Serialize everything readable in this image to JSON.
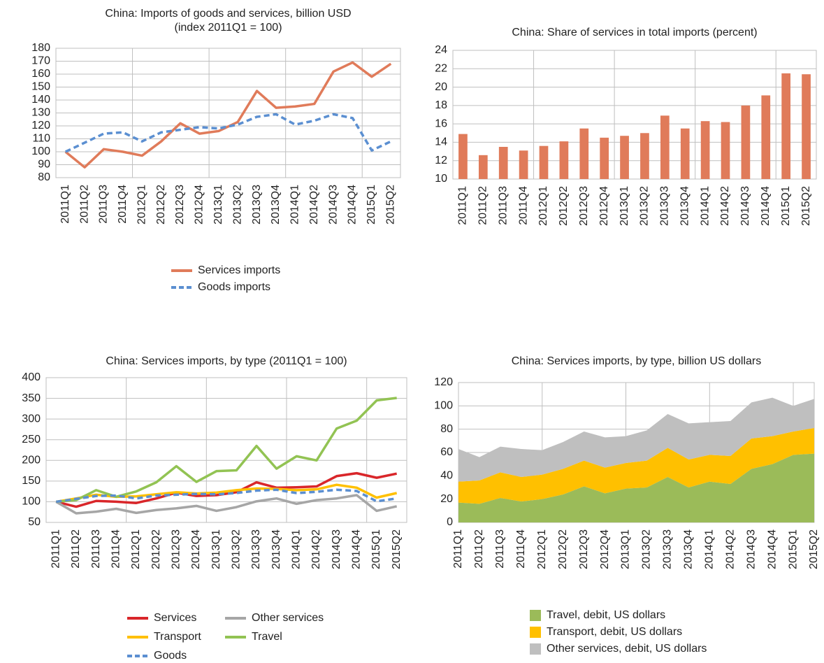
{
  "chart_data": [
    {
      "type": "line",
      "title": "China: Imports of goods and services, billion USD",
      "subtitle": "(index 2011Q1 = 100)",
      "categories": [
        "2011Q1",
        "2011Q2",
        "2011Q3",
        "2011Q4",
        "2012Q1",
        "2012Q2",
        "2012Q3",
        "2012Q4",
        "2013Q1",
        "2013Q2",
        "2013Q3",
        "2013Q4",
        "2014Q1",
        "2014Q2",
        "2014Q3",
        "2014Q4",
        "2015Q1",
        "2015Q2"
      ],
      "series": [
        {
          "name": "Services imports",
          "color": "#e07b5a",
          "dash": false,
          "values": [
            100,
            88,
            102,
            100,
            97,
            108,
            122,
            114,
            116,
            123,
            147,
            134,
            135,
            137,
            162,
            169,
            158,
            168
          ]
        },
        {
          "name": "Goods imports",
          "color": "#5b8fd1",
          "dash": true,
          "values": [
            100,
            107,
            114,
            115,
            108,
            115,
            117,
            119,
            118,
            121,
            127,
            129,
            121,
            124,
            129,
            126,
            101,
            108
          ]
        }
      ],
      "ylim": [
        80,
        180
      ],
      "yticks": [
        80,
        90,
        100,
        110,
        120,
        130,
        140,
        150,
        160,
        170,
        180
      ],
      "grid": true,
      "legend_columns": 1
    },
    {
      "type": "bar",
      "title": "China: Share of services in total imports (percent)",
      "categories": [
        "2011Q1",
        "2011Q2",
        "2011Q3",
        "2011Q4",
        "2012Q1",
        "2012Q2",
        "2012Q3",
        "2012Q4",
        "2013Q1",
        "2013Q2",
        "2013Q3",
        "2013Q4",
        "2014Q1",
        "2014Q2",
        "2014Q3",
        "2014Q4",
        "2015Q1",
        "2015Q2"
      ],
      "values": [
        14.9,
        12.6,
        13.5,
        13.1,
        13.6,
        14.1,
        15.5,
        14.5,
        14.7,
        15.0,
        16.9,
        15.5,
        16.3,
        16.2,
        18.0,
        19.1,
        21.5,
        21.4
      ],
      "color": "#e07b5a",
      "ylim": [
        10,
        24
      ],
      "yticks": [
        10,
        12,
        14,
        16,
        18,
        20,
        22,
        24
      ],
      "grid": true
    },
    {
      "type": "line",
      "title": "China: Services imports, by type (2011Q1 = 100)",
      "categories": [
        "2011Q1",
        "2011Q2",
        "2011Q3",
        "2011Q4",
        "2012Q1",
        "2012Q2",
        "2012Q3",
        "2012Q4",
        "2013Q1",
        "2013Q2",
        "2013Q3",
        "2013Q4",
        "2014Q1",
        "2014Q2",
        "2014Q3",
        "2014Q4",
        "2015Q1",
        "2015Q2"
      ],
      "series": [
        {
          "name": "Services",
          "color": "#d9262a",
          "dash": false,
          "values": [
            100,
            88,
            102,
            100,
            97,
            108,
            122,
            114,
            116,
            123,
            147,
            134,
            135,
            137,
            162,
            169,
            158,
            168
          ]
        },
        {
          "name": "Other services",
          "color": "#a6a6a6",
          "dash": false,
          "values": [
            100,
            72,
            76,
            83,
            73,
            80,
            84,
            90,
            78,
            87,
            101,
            108,
            95,
            104,
            108,
            116,
            78,
            89
          ]
        },
        {
          "name": "Transport",
          "color": "#ffc000",
          "dash": false,
          "values": [
            100,
            108,
            117,
            112,
            113,
            118,
            123,
            120,
            122,
            128,
            132,
            131,
            128,
            130,
            141,
            134,
            110,
            121
          ]
        },
        {
          "name": "Travel",
          "color": "#92c353",
          "dash": false,
          "values": [
            100,
            104,
            128,
            112,
            125,
            147,
            186,
            148,
            174,
            176,
            235,
            180,
            210,
            200,
            277,
            296,
            345,
            351
          ]
        },
        {
          "name": "Goods",
          "color": "#5b8fd1",
          "dash": true,
          "values": [
            100,
            107,
            114,
            115,
            108,
            115,
            117,
            119,
            118,
            121,
            127,
            129,
            121,
            124,
            129,
            126,
            101,
            108
          ]
        }
      ],
      "ylim": [
        50,
        400
      ],
      "yticks": [
        50,
        100,
        150,
        200,
        250,
        300,
        350,
        400
      ],
      "grid": true,
      "legend_columns": 2
    },
    {
      "type": "area",
      "title": "China: Services imports, by type, billion US dollars",
      "categories": [
        "2011Q1",
        "2011Q2",
        "2011Q3",
        "2011Q4",
        "2012Q1",
        "2012Q2",
        "2012Q3",
        "2012Q4",
        "2013Q1",
        "2013Q2",
        "2013Q3",
        "2013Q4",
        "2014Q1",
        "2014Q2",
        "2014Q3",
        "2014Q4",
        "2015Q1",
        "2015Q2"
      ],
      "series": [
        {
          "name": "Travel, debit, US dollars",
          "color": "#9bbb59",
          "values": [
            17,
            16,
            21,
            18,
            20,
            24,
            31,
            25,
            29,
            30,
            39,
            30,
            35,
            33,
            46,
            50,
            58,
            59
          ]
        },
        {
          "name": "Transport, debit, US dollars",
          "color": "#ffc000",
          "values": [
            18,
            20,
            22,
            21,
            21,
            22,
            22,
            22,
            22,
            23,
            25,
            24,
            23,
            24,
            26,
            24,
            20,
            22
          ]
        },
        {
          "name": "Other services, debit, US dollars",
          "color": "#bfbfbf",
          "values": [
            28,
            20,
            22,
            24,
            21,
            23,
            25,
            26,
            23,
            26,
            29,
            31,
            28,
            30,
            31,
            33,
            22,
            25
          ]
        }
      ],
      "stacked": true,
      "ylim": [
        0,
        120
      ],
      "yticks": [
        0,
        20,
        40,
        60,
        80,
        100,
        120
      ],
      "grid": true,
      "legend_columns": 1
    }
  ]
}
